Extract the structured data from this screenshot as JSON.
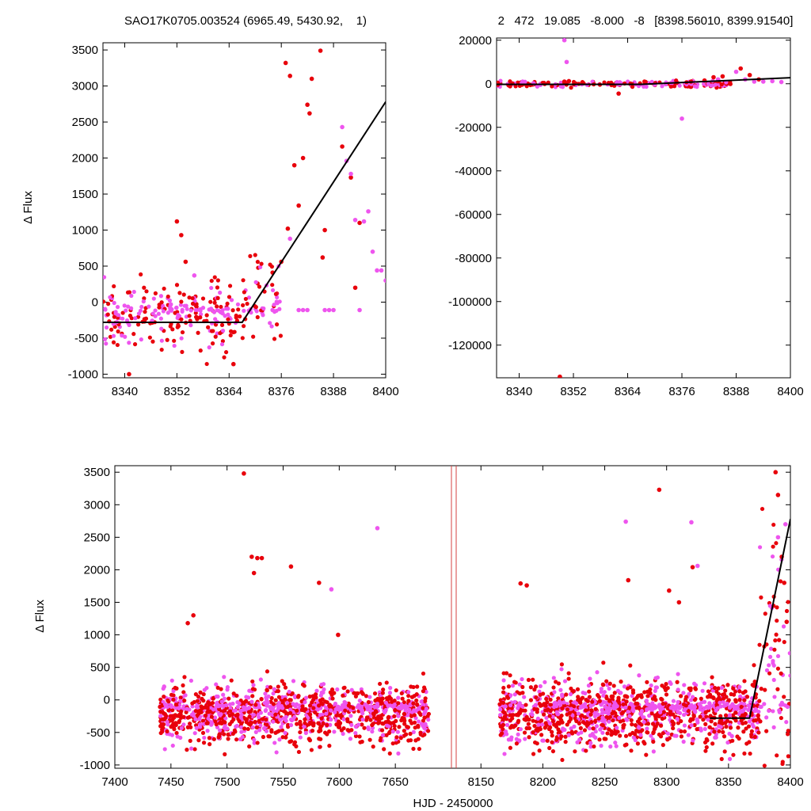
{
  "colors": {
    "series_red": "#e8000b",
    "series_magenta": "#ee55ee",
    "fit_line": "#000000",
    "gap_marker": "#d44040"
  },
  "header": {
    "left_title": "SAO17K0705.003524 (6965.49, 5430.92,    1)",
    "right_title": "2   472   19.085   -8.000   -8   [8398.56010, 8399.91540]"
  },
  "chart_data": [
    {
      "type": "scatter",
      "panel": "top-left",
      "title": "SAO17K0705.003524 (6965.49, 5430.92,    1)",
      "xlabel": "",
      "ylabel": "Δ Flux",
      "xlim": [
        8335,
        8400
      ],
      "ylim": [
        -1050,
        3600
      ],
      "xticks": [
        8340,
        8352,
        8364,
        8376,
        8388,
        8400
      ],
      "yticks": [
        -1000,
        -500,
        0,
        500,
        1000,
        1500,
        2000,
        2500,
        3000,
        3500
      ],
      "fit_line": {
        "x": [
          8335,
          8367,
          8400
        ],
        "y": [
          -280,
          -280,
          2780
        ]
      },
      "series": [
        {
          "color": "red",
          "x": [
            8341,
            8352,
            8353,
            8354,
            8377,
            8378,
            8379,
            8381,
            8382,
            8382.5,
            8383,
            8385,
            8385.5,
            8386,
            8390,
            8392,
            8393,
            8394,
            8365,
            8374,
            8376,
            8377.5,
            8380
          ],
          "y": [
            -1000,
            1120,
            930,
            560,
            3320,
            3140,
            1900,
            2000,
            2740,
            2620,
            3100,
            3490,
            620,
            1000,
            2160,
            1730,
            200,
            1100,
            -860,
            410,
            560,
            1020,
            1340
          ]
        },
        {
          "color": "magenta",
          "x": [
            8356,
            8374,
            8378,
            8380,
            8381,
            8382,
            8386,
            8387,
            8388,
            8390,
            8391,
            8392,
            8393,
            8394,
            8395,
            8396,
            8397,
            8398,
            8399,
            8400
          ],
          "y": [
            370,
            -110,
            880,
            -110,
            -110,
            -110,
            -110,
            -110,
            -110,
            2430,
            1960,
            1780,
            1140,
            -110,
            1120,
            1260,
            700,
            440,
            440,
            300
          ]
        }
      ]
    },
    {
      "type": "scatter",
      "panel": "top-right",
      "title": "2   472   19.085   -8.000   -8   [8398.56010, 8399.91540]",
      "xlabel": "",
      "ylabel": "",
      "xlim": [
        8335,
        8400
      ],
      "ylim": [
        -135000,
        21000
      ],
      "xticks": [
        8340,
        8352,
        8364,
        8376,
        8388,
        8400
      ],
      "yticks": [
        -120000,
        -100000,
        -80000,
        -60000,
        -40000,
        -20000,
        0,
        20000
      ],
      "fit_line": {
        "x": [
          8335,
          8367,
          8400
        ],
        "y": [
          -280,
          -280,
          2780
        ]
      },
      "series": [
        {
          "color": "red",
          "x": [
            8349,
            8350,
            8351,
            8354,
            8362,
            8378,
            8381,
            8383,
            8385,
            8389,
            8391,
            8393
          ],
          "y": [
            -134500,
            1000,
            1200,
            700,
            -4500,
            1000,
            1500,
            3000,
            3400,
            7000,
            4000,
            2000
          ]
        },
        {
          "color": "magenta",
          "x": [
            8350,
            8350.5,
            8376,
            8384,
            8388,
            8390,
            8392,
            8394,
            8396,
            8398
          ],
          "y": [
            20000,
            10000,
            -16000,
            2000,
            5500,
            2000,
            1000,
            1000,
            1200,
            800
          ]
        }
      ]
    },
    {
      "type": "scatter",
      "panel": "bottom",
      "title": "",
      "xlabel": "HJD - 2450000",
      "ylabel": "Δ Flux",
      "ylim": [
        -1050,
        3600
      ],
      "yticks": [
        -1000,
        -500,
        0,
        500,
        1000,
        1500,
        2000,
        2500,
        3000,
        3500
      ],
      "segments": [
        {
          "xlim": [
            7400,
            7700
          ],
          "xticks": [
            7400,
            7450,
            7500,
            7550,
            7600,
            7650
          ]
        },
        {
          "xlim": [
            8130,
            8400
          ],
          "xticks": [
            8150,
            8200,
            8250,
            8300,
            8350,
            8400
          ]
        }
      ],
      "fit_line": {
        "x": [
          8335,
          8367,
          8400
        ],
        "y": [
          -280,
          -280,
          2780
        ]
      },
      "outliers": {
        "red": {
          "x": [
            7515,
            7522,
            7524,
            7527,
            7531,
            7557,
            7599,
            7470,
            7465,
            7582,
            8182,
            8187,
            8294,
            8302,
            8310,
            8321,
            8269,
            8388,
            8390,
            8393,
            8395,
            8397
          ],
          "y": [
            3480,
            2200,
            1950,
            2180,
            2180,
            2050,
            1000,
            1300,
            1180,
            1800,
            1790,
            1760,
            3230,
            1680,
            1500,
            2040,
            1840,
            3500,
            3150,
            2200,
            1800,
            1200
          ]
        },
        "magenta": {
          "x": [
            7634,
            7593,
            8267,
            8320,
            8325,
            8390,
            8396
          ],
          "y": [
            2640,
            1700,
            2740,
            2730,
            2060,
            2500,
            2700
          ]
        }
      }
    }
  ]
}
